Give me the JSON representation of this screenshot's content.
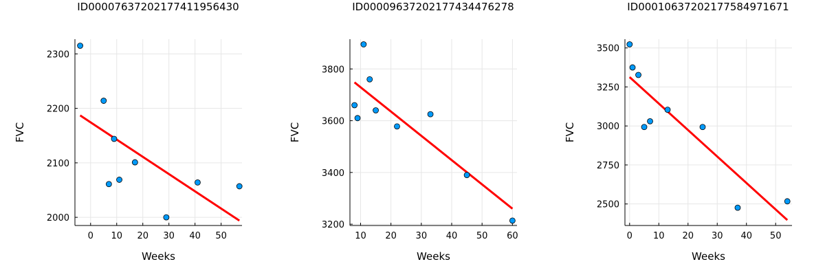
{
  "chart_data": [
    {
      "type": "scatter",
      "title": "ID00007637202177411956430",
      "xlabel": "Weeks",
      "ylabel": "FVC",
      "xlim": [
        -6,
        58
      ],
      "ylim": [
        1985,
        2327
      ],
      "xticks": [
        0,
        10,
        20,
        30,
        40,
        50
      ],
      "yticks": [
        2000,
        2100,
        2200,
        2300
      ],
      "points": {
        "x": [
          -4,
          5,
          7,
          9,
          11,
          17,
          29,
          41,
          57
        ],
        "y": [
          2315,
          2214,
          2061,
          2144,
          2069,
          2101,
          2000,
          2064,
          2057
        ]
      },
      "fit": {
        "x": [
          -4,
          57
        ],
        "y": [
          2187,
          1994
        ]
      },
      "grid": true,
      "legend": "none",
      "colors": {
        "points": "#009AFA",
        "fit": "#FF0000"
      }
    },
    {
      "type": "scatter",
      "title": "ID00009637202177434476278",
      "xlabel": "Weeks",
      "ylabel": "FVC",
      "xlim": [
        6.5,
        61.5
      ],
      "ylim": [
        3195,
        3915
      ],
      "xticks": [
        10,
        20,
        30,
        40,
        50,
        60
      ],
      "yticks": [
        3200,
        3400,
        3600,
        3800
      ],
      "points": {
        "x": [
          8,
          9,
          11,
          13,
          15,
          22,
          33,
          45,
          60
        ],
        "y": [
          3660,
          3610,
          3895,
          3760,
          3640,
          3578,
          3625,
          3390,
          3214
        ]
      },
      "fit": {
        "x": [
          8,
          60
        ],
        "y": [
          3748,
          3260
        ]
      },
      "grid": true,
      "legend": "none",
      "colors": {
        "points": "#009AFA",
        "fit": "#FF0000"
      }
    },
    {
      "type": "scatter",
      "title": "ID00010637202177584971671",
      "xlabel": "Weeks",
      "ylabel": "FVC",
      "xlim": [
        -1.6,
        55.6
      ],
      "ylim": [
        2362,
        3556
      ],
      "xticks": [
        0,
        10,
        20,
        30,
        40,
        50
      ],
      "yticks": [
        2500,
        2750,
        3000,
        3250,
        3500
      ],
      "points": {
        "x": [
          0,
          1,
          3,
          5,
          7,
          13,
          25,
          37,
          54
        ],
        "y": [
          3523,
          3375,
          3327,
          2993,
          3030,
          3104,
          2993,
          2476,
          2517
        ]
      },
      "fit": {
        "x": [
          0,
          54
        ],
        "y": [
          3313,
          2397
        ]
      },
      "grid": true,
      "legend": "none",
      "colors": {
        "points": "#009AFA",
        "fit": "#FF0000"
      }
    }
  ]
}
